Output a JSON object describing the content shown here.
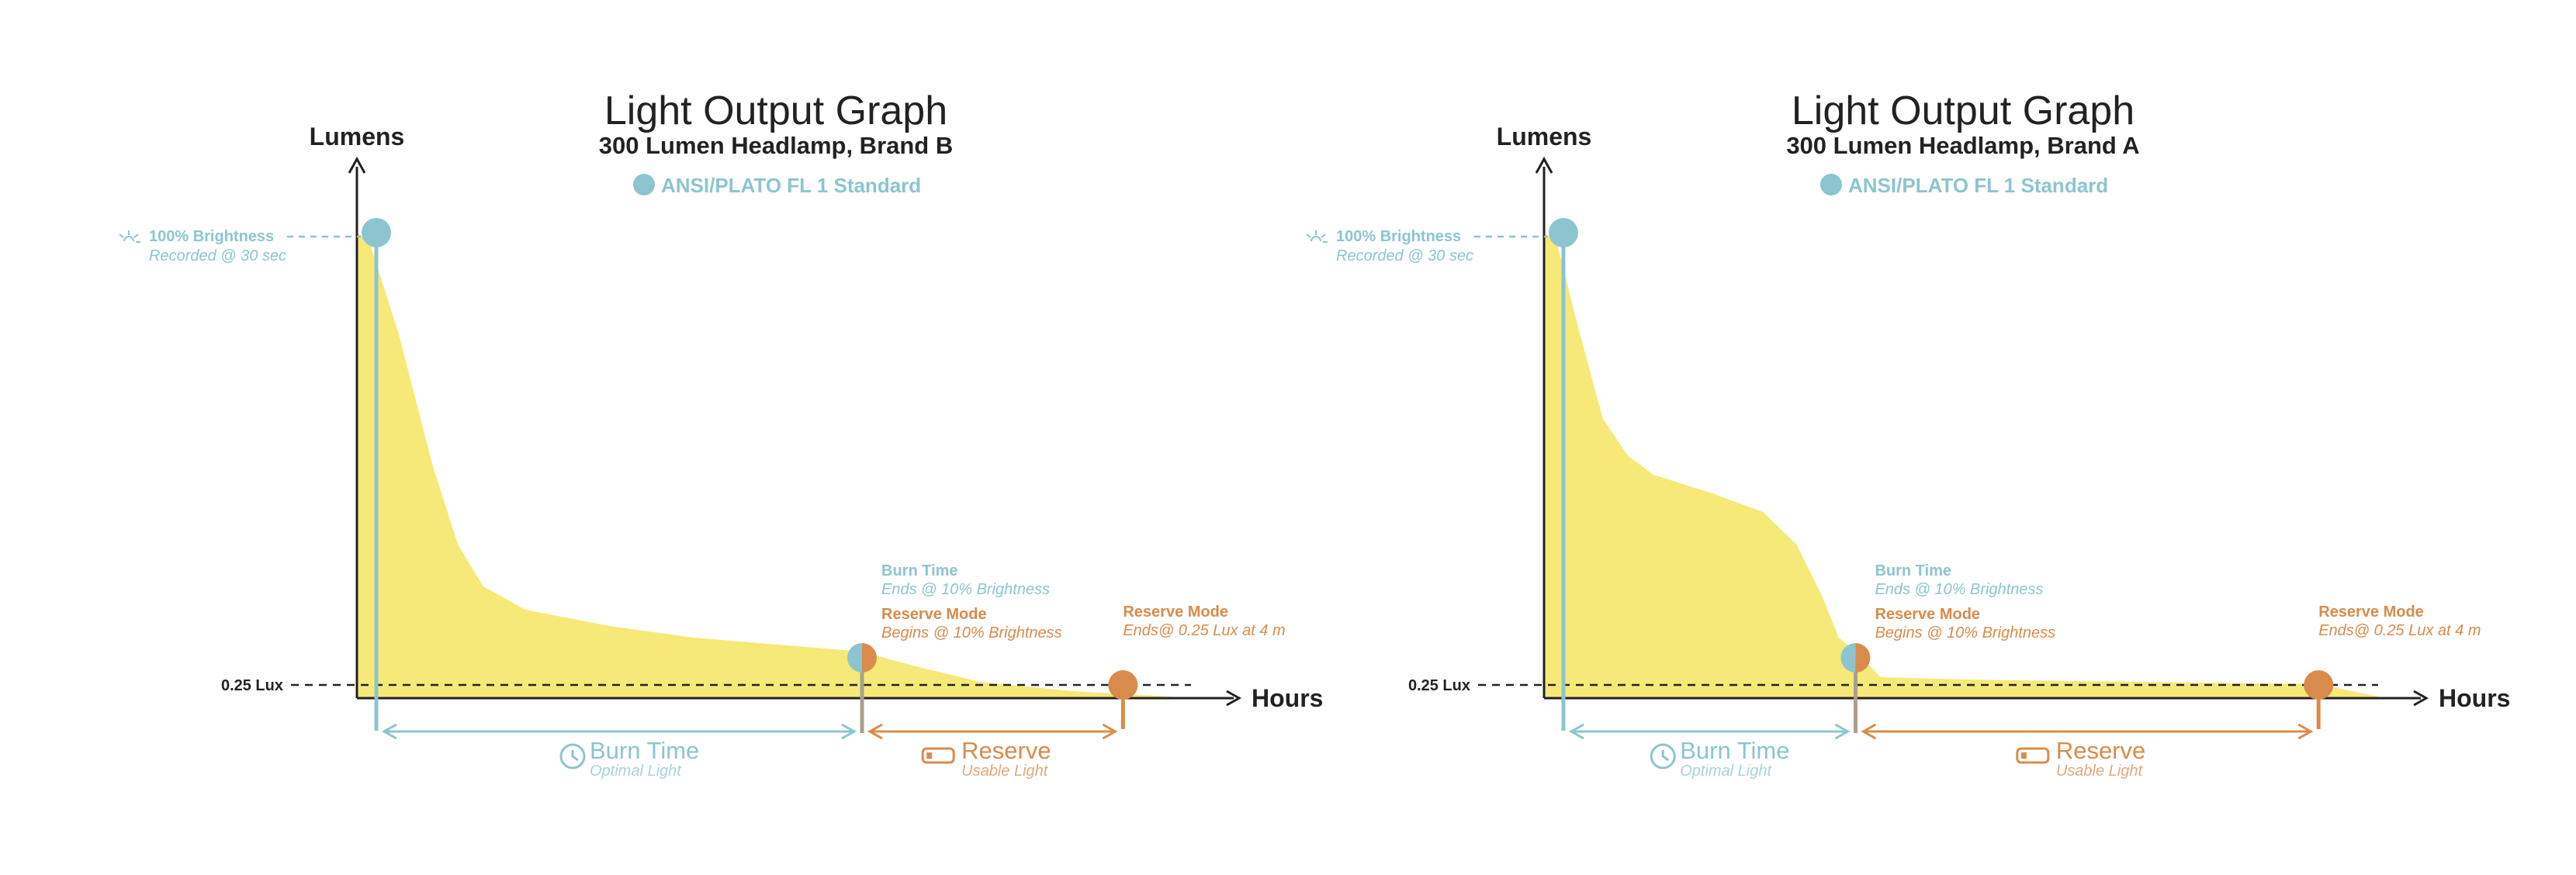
{
  "colors": {
    "blue": "#8cc5cf",
    "orange": "#d98b4b",
    "yellow": "#f6e978",
    "axis": "#222222"
  },
  "icons": [
    "sun-icon",
    "clock-icon",
    "battery-icon"
  ],
  "chart_data": [
    {
      "type": "area",
      "title": "Light Output Graph",
      "subtitle": "300 Lumen Headlamp, Brand B",
      "legend": "ANSI/PLATO FL 1 Standard",
      "ylabel": "Lumens",
      "xlabel": "Hours",
      "threshold_label": "0.25 Lux",
      "peak_label": "100% Brightness",
      "peak_sub": "Recorded @ 30 sec",
      "burn_end_title": "Burn Time",
      "burn_end_sub": "Ends @ 10% Brightness",
      "reserve_begin_title": "Reserve Mode",
      "reserve_begin_sub": "Begins @ 10% Brightness",
      "reserve_end_title": "Reserve Mode",
      "reserve_end_sub": "Ends@ 0.25 Lux at 4 m",
      "burn_label": "Burn Time",
      "burn_sub": "Optimal Light",
      "reserve_label": "Reserve",
      "reserve_sub": "Usable Light",
      "burn_end_x": 0.6,
      "reserve_end_x": 0.91,
      "curve": [
        [
          0,
          1.0
        ],
        [
          0.015,
          0.98
        ],
        [
          0.05,
          0.78
        ],
        [
          0.09,
          0.5
        ],
        [
          0.12,
          0.33
        ],
        [
          0.15,
          0.24
        ],
        [
          0.2,
          0.19
        ],
        [
          0.3,
          0.155
        ],
        [
          0.4,
          0.13
        ],
        [
          0.5,
          0.115
        ],
        [
          0.6,
          0.1
        ],
        [
          0.66,
          0.07
        ],
        [
          0.74,
          0.035
        ],
        [
          0.85,
          0.015
        ],
        [
          1.0,
          0.0
        ]
      ]
    },
    {
      "type": "area",
      "title": "Light Output Graph",
      "subtitle": "300 Lumen Headlamp, Brand A",
      "legend": "ANSI/PLATO FL 1 Standard",
      "ylabel": "Lumens",
      "xlabel": "Hours",
      "threshold_label": "0.25 Lux",
      "peak_label": "100% Brightness",
      "peak_sub": "Recorded @ 30 sec",
      "burn_end_title": "Burn Time",
      "burn_end_sub": "Ends @ 10% Brightness",
      "reserve_begin_title": "Reserve Mode",
      "reserve_begin_sub": "Begins @ 10% Brightness",
      "reserve_end_title": "Reserve Mode",
      "reserve_end_sub": "Ends@ 0.25 Lux at 4 m",
      "burn_label": "Burn Time",
      "burn_sub": "Optimal Light",
      "reserve_label": "Reserve",
      "reserve_sub": "Usable Light",
      "burn_end_x": 0.37,
      "reserve_end_x": 0.92,
      "curve": [
        [
          0,
          1.0
        ],
        [
          0.015,
          0.98
        ],
        [
          0.04,
          0.8
        ],
        [
          0.07,
          0.6
        ],
        [
          0.1,
          0.52
        ],
        [
          0.13,
          0.48
        ],
        [
          0.2,
          0.44
        ],
        [
          0.26,
          0.4
        ],
        [
          0.3,
          0.33
        ],
        [
          0.33,
          0.22
        ],
        [
          0.35,
          0.13
        ],
        [
          0.37,
          0.1
        ],
        [
          0.4,
          0.045
        ],
        [
          0.5,
          0.04
        ],
        [
          0.7,
          0.035
        ],
        [
          0.92,
          0.03
        ],
        [
          1.0,
          0.0
        ]
      ]
    }
  ]
}
